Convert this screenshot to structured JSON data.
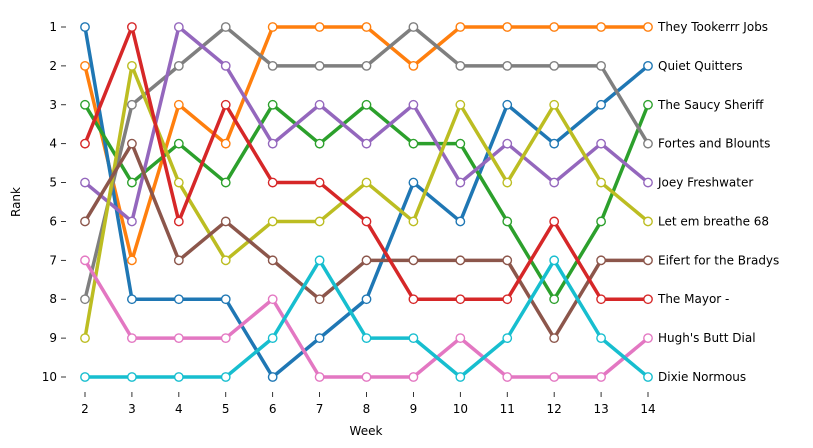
{
  "chart_data": {
    "type": "line",
    "title": "",
    "xlabel": "Week",
    "ylabel": "Rank",
    "x": [
      2,
      3,
      4,
      5,
      6,
      7,
      8,
      9,
      10,
      11,
      12,
      13,
      14
    ],
    "xlim": [
      2,
      14
    ],
    "ylim": [
      1,
      10
    ],
    "y_inverted": true,
    "grid": false,
    "legend": "labels at right end of lines",
    "marker": "open circle",
    "series": [
      {
        "name": "They Tookerrr Jobs",
        "color": "#ff7f0e",
        "values": [
          2,
          7,
          3,
          4,
          1,
          1,
          1,
          2,
          1,
          1,
          1,
          1,
          1
        ]
      },
      {
        "name": "Quiet Quitters",
        "color": "#1f77b4",
        "values": [
          1,
          8,
          8,
          8,
          10,
          9,
          8,
          5,
          6,
          3,
          4,
          3,
          2
        ]
      },
      {
        "name": "The Saucy Sheriff",
        "color": "#2ca02c",
        "values": [
          3,
          5,
          4,
          5,
          3,
          4,
          3,
          4,
          4,
          6,
          8,
          6,
          3
        ]
      },
      {
        "name": "Fortes and Blounts",
        "color": "#7f7f7f",
        "values": [
          8,
          3,
          2,
          1,
          2,
          2,
          2,
          1,
          2,
          2,
          2,
          2,
          4
        ]
      },
      {
        "name": "Joey Freshwater",
        "color": "#9467bd",
        "values": [
          5,
          6,
          1,
          2,
          4,
          3,
          4,
          3,
          5,
          4,
          5,
          4,
          5
        ]
      },
      {
        "name": "Let em breathe 68",
        "color": "#bcbd22",
        "values": [
          9,
          2,
          5,
          7,
          6,
          6,
          5,
          6,
          3,
          5,
          3,
          5,
          6
        ]
      },
      {
        "name": "Eifert  for the Bradys",
        "color": "#8c564b",
        "values": [
          6,
          4,
          7,
          6,
          7,
          8,
          7,
          7,
          7,
          7,
          9,
          7,
          7
        ]
      },
      {
        "name": " The Mayor -",
        "color": "#d62728",
        "values": [
          4,
          1,
          6,
          3,
          5,
          5,
          6,
          8,
          8,
          8,
          6,
          8,
          8
        ]
      },
      {
        "name": "Hugh's  Butt Dial",
        "color": "#e377c2",
        "values": [
          7,
          9,
          9,
          9,
          8,
          10,
          10,
          10,
          9,
          10,
          10,
          10,
          9
        ]
      },
      {
        "name": "Dixie Normous",
        "color": "#17becf",
        "values": [
          10,
          10,
          10,
          10,
          9,
          7,
          9,
          9,
          10,
          9,
          7,
          9,
          10
        ]
      }
    ]
  }
}
